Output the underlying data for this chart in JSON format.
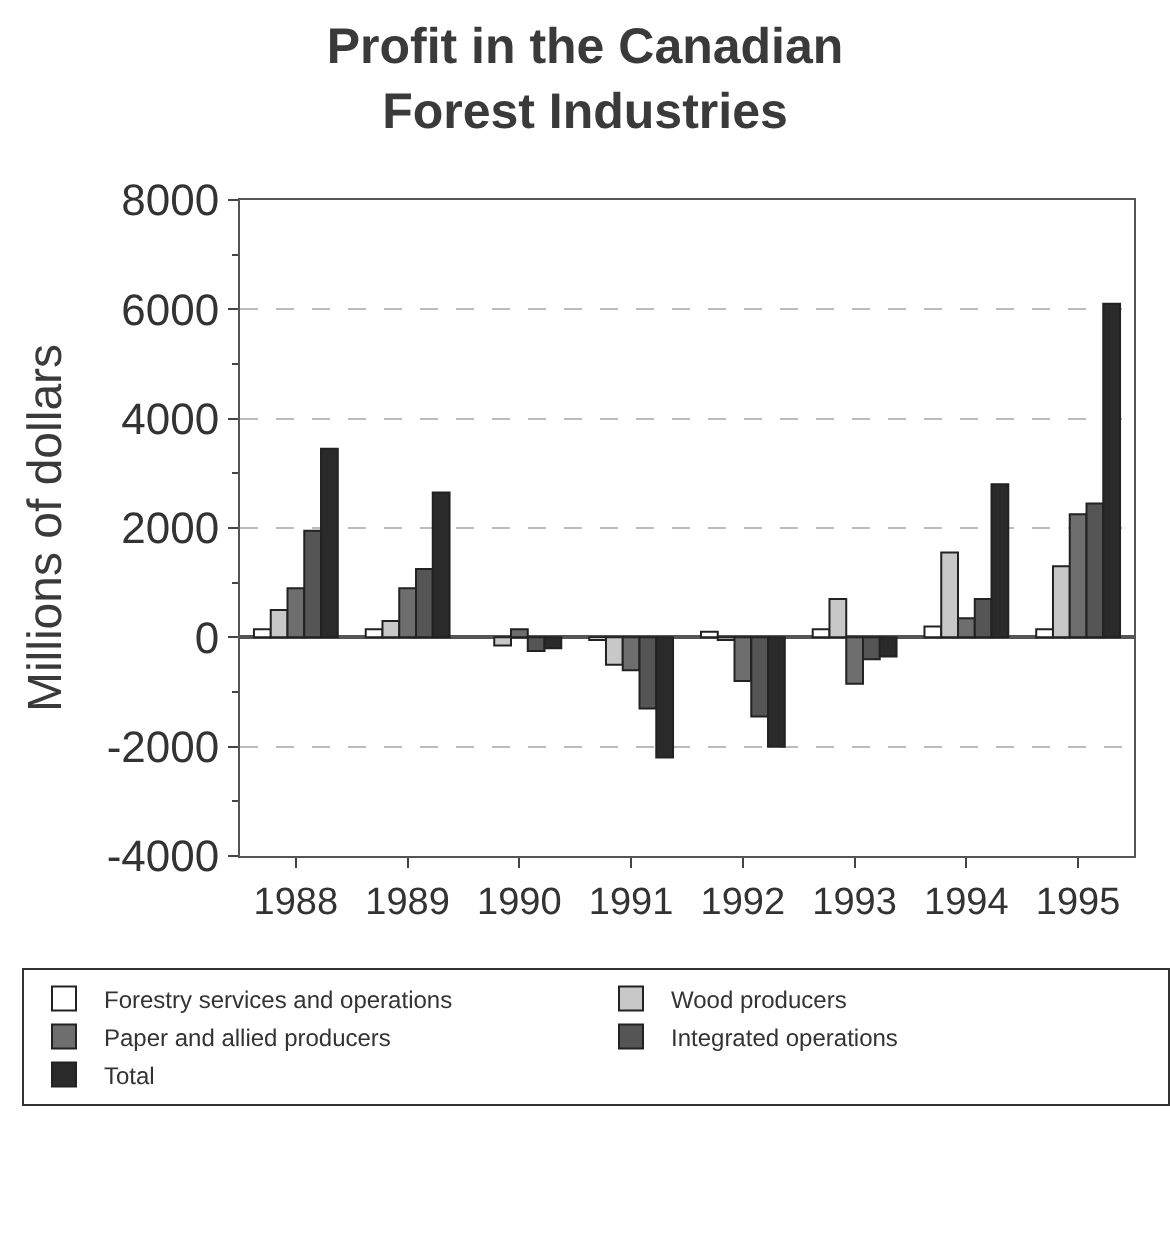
{
  "chart_data": {
    "type": "bar",
    "title": "Profit in the Canadian\nForest Industries",
    "ylabel": "Millions of dollars",
    "categories": [
      "1988",
      "1989",
      "1990",
      "1991",
      "1992",
      "1993",
      "1994",
      "1995"
    ],
    "series": [
      {
        "name": "Forestry services and operations",
        "color": "#ffffff",
        "values": [
          150,
          150,
          null,
          -50,
          100,
          150,
          200,
          150
        ]
      },
      {
        "name": "Wood producers",
        "color": "#c8c8c8",
        "values": [
          500,
          300,
          -150,
          -500,
          -50,
          700,
          1550,
          1300
        ]
      },
      {
        "name": "Paper and allied producers",
        "color": "#6e6e6e",
        "values": [
          900,
          900,
          150,
          -600,
          -800,
          -850,
          350,
          2250
        ]
      },
      {
        "name": "Integrated operations",
        "color": "#555555",
        "values": [
          1950,
          1250,
          -250,
          -1300,
          -1450,
          -400,
          700,
          2450
        ]
      },
      {
        "name": "Total",
        "color": "#2a2a2a",
        "values": [
          3450,
          2650,
          -200,
          -2200,
          -2000,
          -350,
          2800,
          6100
        ]
      }
    ],
    "ylim": [
      -4000,
      8000
    ],
    "yticks": [
      -4000,
      -2000,
      0,
      2000,
      4000,
      6000,
      8000
    ],
    "grid": "y",
    "legend": "bottom"
  }
}
